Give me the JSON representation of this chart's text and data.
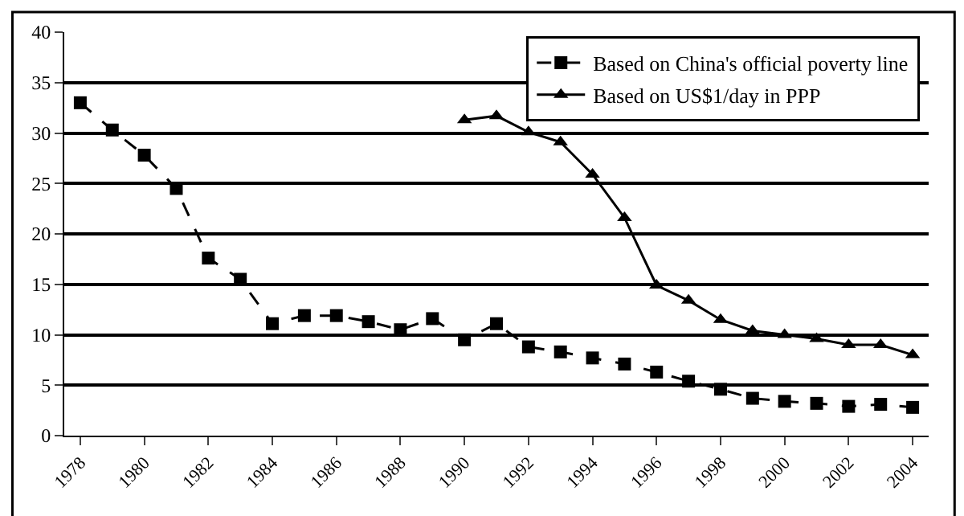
{
  "chart_data": {
    "type": "line",
    "categories": [
      "1978",
      null,
      "1980",
      null,
      "1982",
      null,
      "1984",
      null,
      "1986",
      null,
      "1988",
      null,
      "1990",
      null,
      "1992",
      null,
      "1994",
      null,
      "1996",
      null,
      "1998",
      null,
      "2000",
      null,
      "2002",
      null,
      "2004"
    ],
    "series": [
      {
        "name": "Based on China's official poverty line",
        "color": "#000000",
        "marker": "square",
        "line_style": "dashed",
        "values": [
          33,
          30.3,
          27.8,
          24.5,
          17.6,
          15.5,
          11.1,
          11.9,
          11.9,
          11.3,
          10.5,
          11.6,
          9.5,
          11.1,
          8.8,
          8.3,
          7.7,
          7.1,
          6.3,
          5.4,
          4.6,
          3.7,
          3.4,
          3.2,
          2.9,
          3.1,
          2.8
        ]
      },
      {
        "name": "Based on US$1/day in PPP",
        "color": "#000000",
        "marker": "triangle",
        "line_style": "solid",
        "values": [
          null,
          null,
          null,
          null,
          null,
          null,
          null,
          null,
          null,
          null,
          null,
          null,
          31.3,
          31.7,
          30.1,
          29.1,
          25.9,
          21.6,
          14.9,
          13.4,
          11.5,
          10.4,
          10.0,
          9.6,
          9.0,
          9.0,
          8.0
        ]
      }
    ],
    "ylim": [
      0,
      40
    ],
    "yticks": [
      0,
      5,
      10,
      15,
      20,
      25,
      30,
      35,
      40
    ],
    "grid": "y",
    "legend": "top right"
  }
}
